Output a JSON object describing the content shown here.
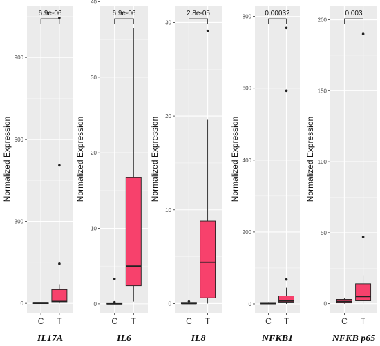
{
  "chart_data": [
    {
      "type": "box",
      "gene": "IL17A",
      "ylabel": "Normalized Expression",
      "categories": [
        "C",
        "T"
      ],
      "ylim": [
        -35,
        1090
      ],
      "yticks": [
        0,
        300,
        600,
        900
      ],
      "ytick_labels": [
        "0",
        "300",
        "600",
        "900"
      ],
      "pvalue": "6.9e-06",
      "fill": "#f7416c",
      "boxes": [
        {
          "category": "C",
          "min": 0,
          "q1": 0,
          "median": 0,
          "q3": 1,
          "max": 2,
          "outliers": []
        },
        {
          "category": "T",
          "min": 0,
          "q1": 3,
          "median": 7,
          "q3": 50,
          "max": 70,
          "outliers": [
            145,
            505,
            1045
          ]
        }
      ]
    },
    {
      "type": "box",
      "gene": "IL6",
      "ylabel": "Normalized Expression",
      "categories": [
        "C",
        "T"
      ],
      "ylim": [
        -1.2,
        39.5
      ],
      "yticks": [
        0,
        10,
        20,
        30,
        40
      ],
      "ytick_labels": [
        "0",
        "10",
        "20",
        "30",
        "40"
      ],
      "pvalue": "6.9e-06",
      "fill": "#f7416c",
      "boxes": [
        {
          "category": "C",
          "min": 0,
          "q1": 0,
          "median": 0,
          "q3": 0.05,
          "max": 0.1,
          "outliers": [
            0.2,
            3.3
          ]
        },
        {
          "category": "T",
          "min": 0.3,
          "q1": 2.4,
          "median": 5,
          "q3": 16.7,
          "max": 36.5,
          "outliers": []
        }
      ]
    },
    {
      "type": "box",
      "gene": "IL8",
      "ylabel": "Normalized Expression",
      "categories": [
        "C",
        "T"
      ],
      "ylim": [
        -1.0,
        31.8
      ],
      "yticks": [
        0,
        10,
        20,
        30
      ],
      "ytick_labels": [
        "0",
        "10",
        "20",
        "30"
      ],
      "pvalue": "2.8e-05",
      "fill": "#f7416c",
      "boxes": [
        {
          "category": "C",
          "min": 0,
          "q1": 0,
          "median": 0,
          "q3": 0.05,
          "max": 0.1,
          "outliers": [
            0.2
          ]
        },
        {
          "category": "T",
          "min": 0,
          "q1": 0.6,
          "median": 4.4,
          "q3": 8.8,
          "max": 19.6,
          "outliers": [
            29.1
          ]
        }
      ]
    },
    {
      "type": "box",
      "gene": "NFKB1",
      "ylabel": "Normalized Expression",
      "categories": [
        "C",
        "T"
      ],
      "ylim": [
        -25,
        830
      ],
      "yticks": [
        0,
        200,
        400,
        600,
        800
      ],
      "ytick_labels": [
        "0",
        "200",
        "400",
        "600",
        "800"
      ],
      "pvalue": "0.00032",
      "fill": "#f7416c",
      "boxes": [
        {
          "category": "C",
          "min": 0,
          "q1": 0,
          "median": 1,
          "q3": 2,
          "max": 3,
          "outliers": []
        },
        {
          "category": "T",
          "min": 0,
          "q1": 3,
          "median": 8,
          "q3": 22,
          "max": 45,
          "outliers": [
            68,
            593,
            768
          ]
        }
      ]
    },
    {
      "type": "box",
      "gene": "NFKB p65",
      "ylabel": "Normalized Expression",
      "categories": [
        "C",
        "T"
      ],
      "ylim": [
        -6.5,
        210
      ],
      "yticks": [
        0,
        50,
        100,
        150,
        200
      ],
      "ytick_labels": [
        "0",
        "50",
        "100",
        "150",
        "200"
      ],
      "pvalue": "0.003",
      "fill": "#f7416c",
      "boxes": [
        {
          "category": "C",
          "min": 0,
          "q1": 0.5,
          "median": 1.5,
          "q3": 3,
          "max": 4,
          "outliers": []
        },
        {
          "category": "T",
          "min": 0,
          "q1": 2,
          "median": 5,
          "q3": 14,
          "max": 20,
          "outliers": [
            47,
            190
          ]
        }
      ]
    }
  ]
}
